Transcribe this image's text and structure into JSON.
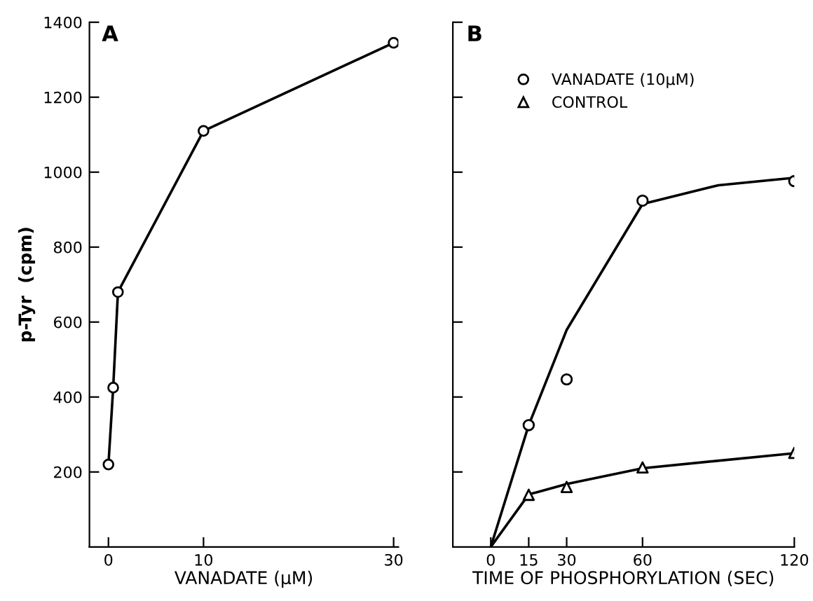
{
  "chart_data": [
    {
      "type": "line",
      "ylabel": "p-Tyr  (cpm)",
      "xlabel": "VANADATE (µM)",
      "annotations": [
        "A"
      ],
      "xlim": [
        -2,
        30.5
      ],
      "ylim": [
        0,
        1400
      ],
      "xticks": [
        0,
        10,
        30
      ],
      "yticks": [
        200,
        400,
        600,
        800,
        1000,
        1200,
        1400
      ],
      "marker": "circle",
      "grid": false,
      "legend": false,
      "series": [
        {
          "color": "#000000",
          "x": [
            0,
            0.5,
            1,
            10,
            30
          ],
          "values": [
            220,
            425,
            680,
            1110,
            1345
          ]
        }
      ]
    },
    {
      "type": "line",
      "xlabel": "TIME OF PHOSPHORYLATION (SEC)",
      "annotations": [
        "B"
      ],
      "xlim": [
        -15,
        120
      ],
      "ylim": [
        0,
        1400
      ],
      "xticks": [
        0,
        15,
        30,
        60,
        120
      ],
      "yticks": [
        {
          "value": 200,
          "label": null
        },
        {
          "value": 400,
          "label": null
        },
        {
          "value": 600,
          "label": null
        },
        {
          "value": 800,
          "label": null
        },
        {
          "value": 1000,
          "label": null
        },
        {
          "value": 1200,
          "label": null
        },
        {
          "value": 1400,
          "label": null
        }
      ],
      "tick_labels": "x",
      "grid": false,
      "legend": "top left",
      "series": [
        {
          "type": "line",
          "marker": "none",
          "color": "#000000",
          "x": [
            0,
            15,
            30,
            60,
            90,
            120
          ],
          "values": [
            0,
            325,
            579,
            915,
            965,
            985
          ]
        },
        {
          "type": "line",
          "marker": "none",
          "color": "#000000",
          "x": [
            0,
            15,
            30,
            60,
            120
          ],
          "values": [
            0,
            140,
            168,
            210,
            250
          ]
        },
        {
          "type": "scatter",
          "marker": "circle",
          "name": "VANADATE (10µM)",
          "color": "#000000",
          "x": [
            15,
            30,
            60,
            120
          ],
          "values": [
            325,
            447,
            924,
            976
          ]
        },
        {
          "type": "scatter",
          "marker": "triangle",
          "name": "CONTROL",
          "color": "#000000",
          "x": [
            15,
            30,
            60,
            120
          ],
          "values": [
            139,
            160,
            212,
            251
          ]
        }
      ]
    }
  ]
}
